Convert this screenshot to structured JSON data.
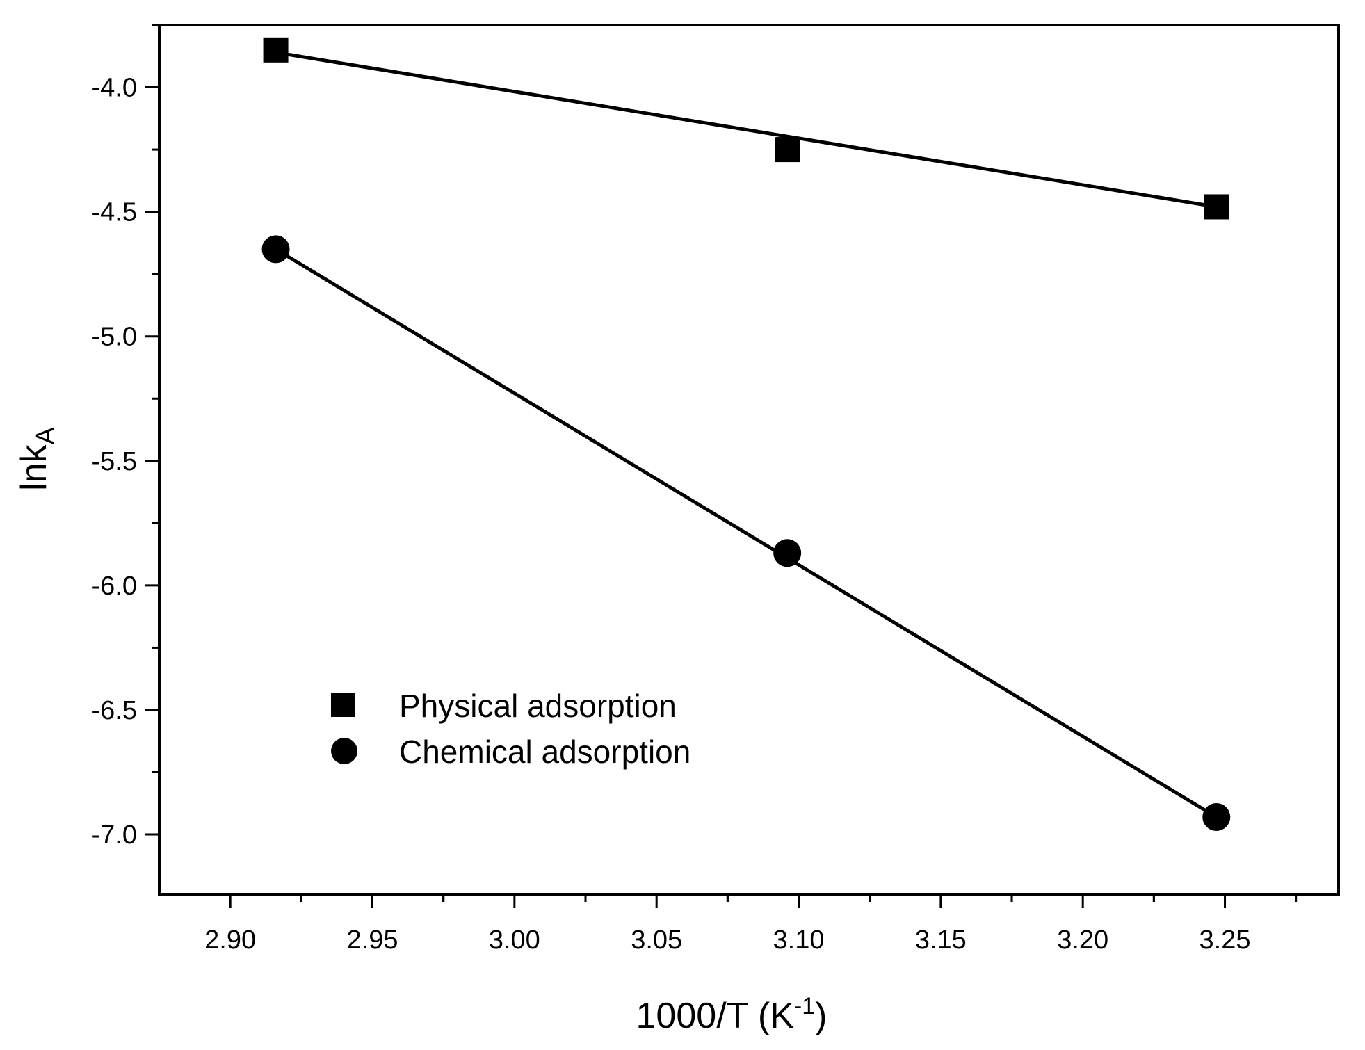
{
  "chart_data": {
    "type": "scatter",
    "title": "",
    "xlabel": {
      "base": "1000/T (K",
      "sup": "-1",
      "tail": ")"
    },
    "ylabel": {
      "base": "lnk",
      "sub": "A"
    },
    "xlim": [
      2.875,
      3.29
    ],
    "ylim": [
      -7.24,
      -3.75
    ],
    "xticks": [
      2.9,
      2.95,
      3.0,
      3.05,
      3.1,
      3.15,
      3.2,
      3.25
    ],
    "xtick_labels": [
      "2.90",
      "2.95",
      "3.00",
      "3.05",
      "3.10",
      "3.15",
      "3.20",
      "3.25"
    ],
    "yticks": [
      -4.0,
      -4.5,
      -5.0,
      -5.5,
      -6.0,
      -6.5,
      -7.0
    ],
    "ytick_labels": [
      "-4.0",
      "-4.5",
      "-5.0",
      "-5.5",
      "-6.0",
      "-6.5",
      "-7.0"
    ],
    "grid": false,
    "legend_position": "bottom-left",
    "series": [
      {
        "name": "Physical adsorption",
        "marker": "square",
        "color": "#000000",
        "x": [
          2.916,
          3.096,
          3.247
        ],
        "y": [
          -3.85,
          -4.25,
          -4.48
        ],
        "fit": {
          "x": [
            2.916,
            3.247
          ],
          "y": [
            -3.86,
            -4.48
          ]
        }
      },
      {
        "name": "Chemical adsorption",
        "marker": "circle",
        "color": "#000000",
        "x": [
          2.916,
          3.096,
          3.247
        ],
        "y": [
          -4.65,
          -5.87,
          -6.93
        ],
        "fit": {
          "x": [
            2.916,
            3.247
          ],
          "y": [
            -4.65,
            -6.93
          ]
        }
      }
    ]
  }
}
